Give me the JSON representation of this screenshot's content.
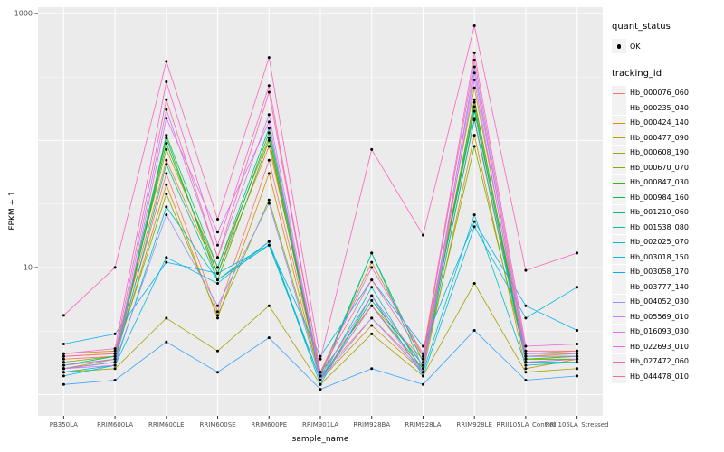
{
  "window": {
    "background": "#FFFFFF"
  },
  "axes": {
    "x_title": "sample_name",
    "y_title": "FPKM + 1",
    "y_tick_labels": [
      "1000",
      "10"
    ]
  },
  "legend": {
    "quant_status": {
      "title": "quant_status",
      "items": [
        {
          "label": "OK",
          "marker": "black-point"
        }
      ]
    },
    "tracking_id": {
      "title": "tracking_id"
    }
  },
  "chart_data": {
    "type": "line",
    "title": "",
    "xlabel": "sample_name",
    "ylabel": "FPKM + 1",
    "y_scale": "log10",
    "y_domain": [
      0.68,
      1120
    ],
    "y_tick_values": [
      10,
      1000
    ],
    "y_major_gridlines": [
      1,
      10,
      100,
      1000
    ],
    "y_minor_gridlines": [
      3.162,
      31.62,
      316.2
    ],
    "grid": true,
    "legend_position": "right",
    "panel_background": "#EBEBEB",
    "gridline_color": "#FFFFFF",
    "point_color": "#000000",
    "categories": [
      "PB350LA",
      "RRIM600LA",
      "RRIM600LE",
      "RRIM600SE",
      "RRIM600PE",
      "RRIM901LA",
      "RRIM928BA",
      "RRIM928LA",
      "RRIM928LE",
      "RRII105LA_Control",
      "RRII105LA_Stressed"
    ],
    "series": [
      {
        "name": "Hb_000076_060",
        "color": "#F8766D",
        "values": [
          1.9,
          2.0,
          55,
          4.5,
          70,
          1.4,
          4.0,
          1.6,
          150,
          1.9,
          2.0
        ]
      },
      {
        "name": "Hb_000235_040",
        "color": "#EA8331",
        "values": [
          2.0,
          2.1,
          70,
          9.0,
          90,
          1.5,
          5.0,
          1.9,
          200,
          2.0,
          2.1
        ]
      },
      {
        "name": "Hb_000424_140",
        "color": "#D89000",
        "values": [
          1.6,
          1.9,
          45,
          4.0,
          55,
          1.3,
          3.5,
          1.5,
          110,
          1.6,
          1.9
        ]
      },
      {
        "name": "Hb_000477_090",
        "color": "#C09B00",
        "values": [
          2.1,
          2.2,
          85,
          10,
          105,
          1.5,
          11,
          2.0,
          260,
          2.1,
          2.2
        ]
      },
      {
        "name": "Hb_000608_190",
        "color": "#A3A500",
        "values": [
          1.5,
          1.6,
          4.0,
          2.2,
          5.0,
          1.2,
          3.0,
          1.4,
          7.5,
          1.5,
          1.6
        ]
      },
      {
        "name": "Hb_000670_070",
        "color": "#7CAE00",
        "values": [
          1.8,
          2.0,
          38,
          4.2,
          34,
          1.4,
          6.0,
          1.7,
          90,
          1.9,
          2.0
        ]
      },
      {
        "name": "Hb_000847_030",
        "color": "#39B600",
        "values": [
          1.6,
          1.8,
          105,
          8.0,
          100,
          1.3,
          5.0,
          1.6,
          210,
          1.9,
          1.9
        ]
      },
      {
        "name": "Hb_000984_160",
        "color": "#00BB4E",
        "values": [
          1.7,
          1.9,
          95,
          9.0,
          115,
          1.3,
          5.5,
          1.7,
          185,
          1.8,
          1.9
        ]
      },
      {
        "name": "Hb_001210_060",
        "color": "#00BF7D",
        "values": [
          1.7,
          2.0,
          110,
          10,
          125,
          1.4,
          13,
          1.8,
          170,
          2.0,
          2.0
        ]
      },
      {
        "name": "Hb_001538_080",
        "color": "#00C1A3",
        "values": [
          1.6,
          1.8,
          65,
          8.0,
          15,
          1.3,
          13,
          1.6,
          145,
          1.8,
          1.8
        ]
      },
      {
        "name": "Hb_002025_070",
        "color": "#00BFC4",
        "values": [
          1.5,
          1.7,
          30,
          8.0,
          16,
          1.3,
          7.0,
          1.5,
          26,
          1.7,
          1.8
        ]
      },
      {
        "name": "Hb_003018_150",
        "color": "#00BAE0",
        "values": [
          1.4,
          1.7,
          12,
          7.5,
          16,
          1.2,
          6.0,
          1.4,
          21,
          4.0,
          7.0
        ]
      },
      {
        "name": "Hb_003058_170",
        "color": "#00B0F6",
        "values": [
          2.5,
          3.0,
          11,
          9.0,
          15,
          2.0,
          8.0,
          2.4,
          23,
          5.0,
          3.2
        ]
      },
      {
        "name": "Hb_003777_140",
        "color": "#35A2FF",
        "values": [
          1.2,
          1.3,
          2.6,
          1.5,
          2.8,
          1.1,
          1.6,
          1.2,
          3.2,
          1.3,
          1.4
        ]
      },
      {
        "name": "Hb_004052_030",
        "color": "#9590FF",
        "values": [
          1.6,
          1.8,
          26,
          5.0,
          32,
          1.3,
          4.0,
          1.5,
          380,
          2.0,
          2.0
        ]
      },
      {
        "name": "Hb_005569_010",
        "color": "#C77CFF",
        "values": [
          1.7,
          1.9,
          175,
          12,
          160,
          1.4,
          6.0,
          1.7,
          340,
          2.1,
          2.1
        ]
      },
      {
        "name": "Hb_016093_030",
        "color": "#E76BF3",
        "values": [
          1.6,
          1.7,
          150,
          19,
          140,
          1.3,
          5.0,
          1.5,
          300,
          1.8,
          1.9
        ]
      },
      {
        "name": "Hb_022693_010",
        "color": "#FA62DB",
        "values": [
          2.1,
          2.3,
          290,
          15,
          270,
          1.5,
          10,
          2.1,
          490,
          2.4,
          2.5
        ]
      },
      {
        "name": "Hb_027472_060",
        "color": "#FF62BC",
        "values": [
          4.2,
          10,
          420,
          24,
          450,
          1.9,
          85,
          18,
          800,
          9.5,
          13
        ]
      },
      {
        "name": "Hb_044478_010",
        "color": "#FF6A98",
        "values": [
          2.0,
          2.1,
          210,
          12,
          240,
          1.5,
          8.0,
          2.0,
          430,
          2.2,
          2.2
        ]
      }
    ]
  }
}
